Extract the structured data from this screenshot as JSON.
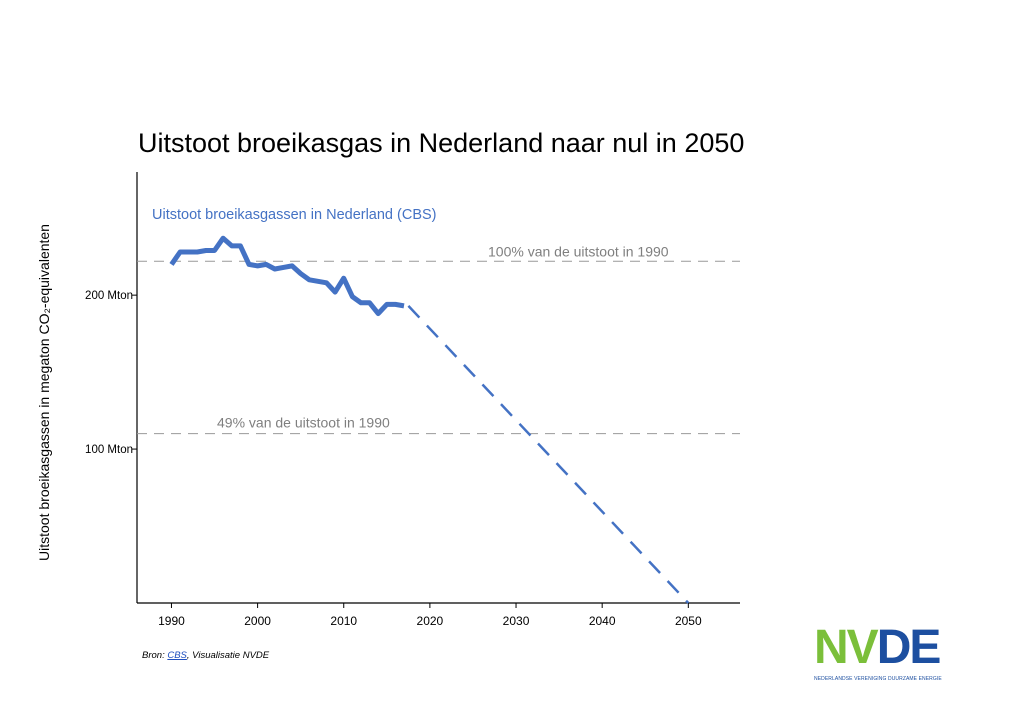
{
  "title": "Uitstoot broeikasgas in Nederland naar nul in 2050",
  "source": {
    "prefix": "Bron: ",
    "link": "CBS",
    "suffix": ", Visualisatie NVDE"
  },
  "logo": {
    "text_nv": "NV",
    "text_de": "DE",
    "tagline": "NEDERLANDSE VERENIGING DUURZAME ENERGIE",
    "green": "#7bbf3a",
    "blue": "#1d4fa0"
  },
  "chart_data": {
    "type": "line",
    "title": "Uitstoot broeikasgas in Nederland naar nul in 2050",
    "ylabel": "Uitstoot broeikasgassen in megaton CO₂-equivalenten",
    "xlabel": "",
    "xlim": [
      1986,
      2056
    ],
    "ylim": [
      0,
      280
    ],
    "x_ticks": [
      1990,
      2000,
      2010,
      2020,
      2030,
      2040,
      2050
    ],
    "y_ticks": [
      {
        "value": 100,
        "label": "100 Mton"
      },
      {
        "value": 200,
        "label": "200 Mton"
      }
    ],
    "grid": false,
    "series": [
      {
        "name": "Uitstoot broeikasgassen in Nederland (CBS)",
        "color": "#4472c4",
        "style": "solid",
        "x": [
          1990,
          1991,
          1992,
          1993,
          1994,
          1995,
          1996,
          1997,
          1998,
          1999,
          2000,
          2001,
          2002,
          2003,
          2004,
          2005,
          2006,
          2007,
          2008,
          2009,
          2010,
          2011,
          2012,
          2013,
          2014,
          2015,
          2016,
          2017
        ],
        "y": [
          220,
          228,
          228,
          228,
          229,
          229,
          237,
          232,
          232,
          220,
          219,
          220,
          217,
          218,
          219,
          214,
          210,
          209,
          208,
          202,
          211,
          199,
          195,
          195,
          188,
          194,
          194,
          193
        ]
      },
      {
        "name": "",
        "color": "#4472c4",
        "style": "dashed",
        "x": [
          2017.5,
          2050
        ],
        "y": [
          193,
          0
        ]
      }
    ],
    "reference_lines": [
      {
        "value": 222,
        "label": "100% van de uitstoot in 1990",
        "color": "#999999"
      },
      {
        "value": 110,
        "label": "49% van de uitstoot in 1990",
        "color": "#999999"
      }
    ]
  }
}
